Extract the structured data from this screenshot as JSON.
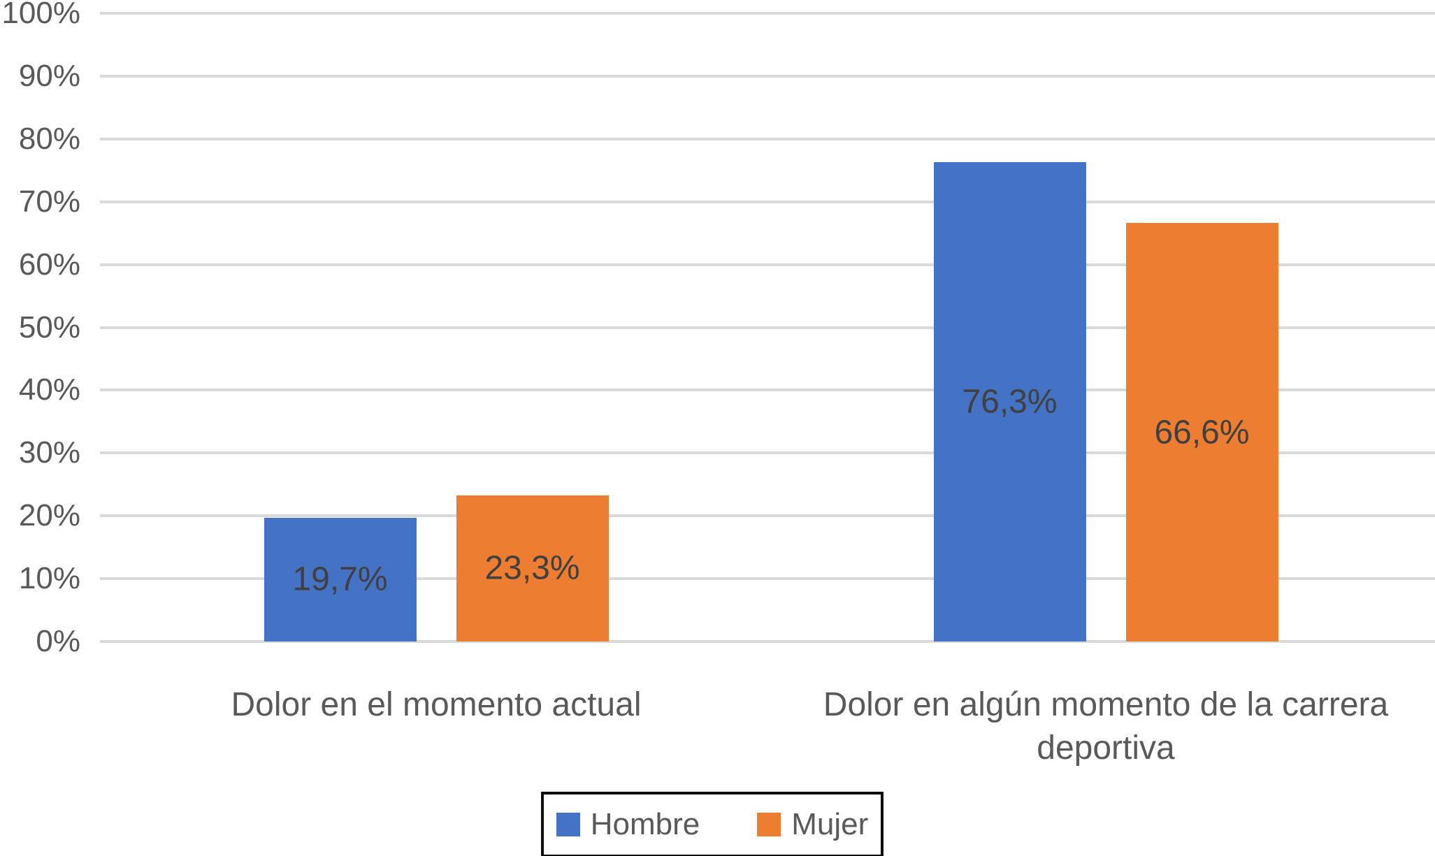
{
  "chart_data": {
    "type": "bar",
    "title": "",
    "xlabel": "",
    "ylabel": "",
    "categories": [
      "Dolor en el momento actual",
      "Dolor en algún momento de la carrera deportiva"
    ],
    "series": [
      {
        "name": "Hombre",
        "color": "#4472C4",
        "values": [
          19.7,
          76.3
        ],
        "value_labels": [
          "19,7%",
          "76,3%"
        ]
      },
      {
        "name": "Mujer",
        "color": "#ED7D31",
        "values": [
          23.3,
          66.6
        ],
        "value_labels": [
          "23,3%",
          "66,6%"
        ]
      }
    ],
    "y_axis": {
      "min": 0,
      "max": 100,
      "step": 10,
      "tick_labels": [
        "0%",
        "10%",
        "20%",
        "30%",
        "40%",
        "50%",
        "60%",
        "70%",
        "80%",
        "90%",
        "100%"
      ]
    },
    "grid": true,
    "legend_position": "bottom",
    "value_labels_position": "center-inside"
  },
  "colors": {
    "gridline": "#d9d9d9",
    "axis_text": "#595959",
    "category_text": "#595959",
    "value_label_text": "#404040",
    "legend_text": "#595959",
    "legend_border": "#0d0d0d",
    "background": "#ffffff"
  }
}
